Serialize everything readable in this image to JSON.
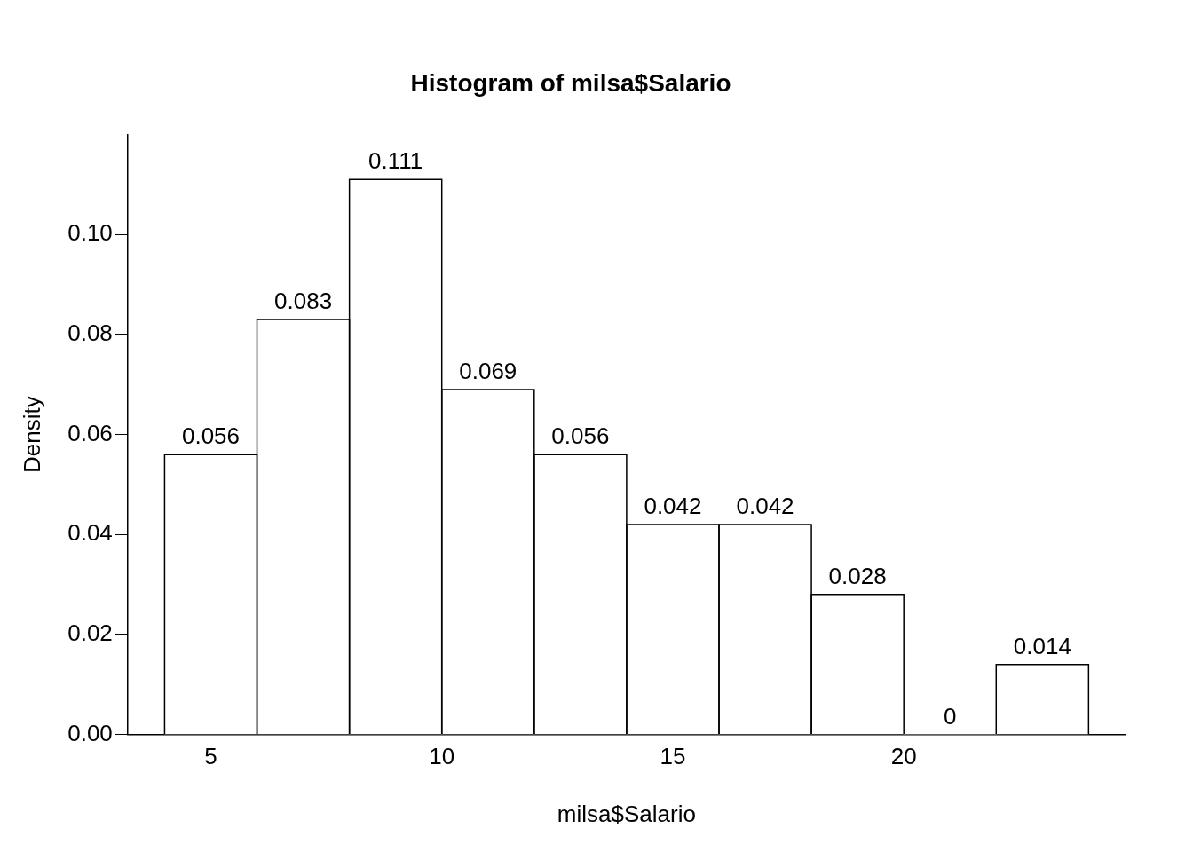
{
  "chart_data": {
    "type": "histogram",
    "title": "Histogram of milsa$Salario",
    "xlabel": "milsa$Salario",
    "ylabel": "Density",
    "bins": [
      4,
      6,
      8,
      10,
      12,
      14,
      16,
      18,
      20,
      22,
      24
    ],
    "values": [
      0.056,
      0.083,
      0.111,
      0.069,
      0.056,
      0.042,
      0.042,
      0.028,
      0,
      0.014
    ],
    "color": "#ffffff",
    "xlim": [
      3.2,
      24.8
    ],
    "xticks": [
      5,
      10,
      15,
      20
    ],
    "ylim": [
      0,
      0.12
    ],
    "yticks": [
      {
        "value": 0,
        "label": "0.00"
      },
      {
        "value": 0.02,
        "label": "0.02"
      },
      {
        "value": 0.04,
        "label": "0.04"
      },
      {
        "value": 0.06,
        "label": "0.06"
      },
      {
        "value": 0.08,
        "label": "0.08"
      },
      {
        "value": 0.1,
        "label": "0.10"
      }
    ],
    "data_labels": true,
    "grid": false,
    "legend": false
  }
}
